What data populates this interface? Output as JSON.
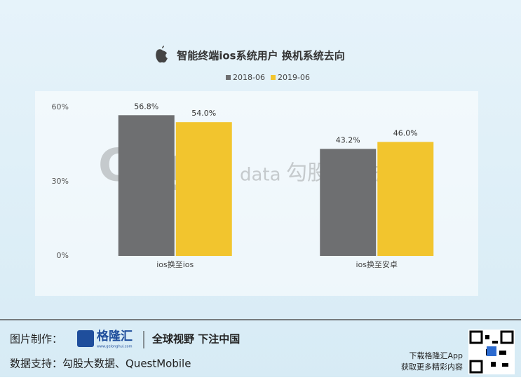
{
  "chart_data": {
    "type": "bar",
    "title": "智能终端ios系统用户 换机系统去向",
    "categories": [
      "ios换至ios",
      "ios换至安卓"
    ],
    "series": [
      {
        "name": "2018-06",
        "color": "#6e6f71",
        "values": [
          56.8,
          43.2
        ],
        "value_labels": [
          "56.8%",
          "43.2%"
        ]
      },
      {
        "name": "2019-06",
        "color": "#f2c52e",
        "values": [
          54.0,
          46.0
        ],
        "value_labels": [
          "54.0%",
          "46.0%"
        ]
      }
    ],
    "ylim": [
      0,
      60
    ],
    "yticks": [
      {
        "value": 0,
        "label": "0%"
      },
      {
        "value": 30,
        "label": "30%"
      },
      {
        "value": 60,
        "label": "60%"
      }
    ],
    "grid": false,
    "legend": "top"
  },
  "watermark": {
    "logo": "Gogu",
    "suffix": "data",
    "name": "勾股大数据"
  },
  "footer": {
    "made_by_label": "图片制作：",
    "brand": "格隆汇",
    "brand_site": "www.gelonghui.com",
    "slogan": "全球视野 下注中国",
    "source": "数据支持：勾股大数据、QuestMobile",
    "app_line1": "下载格隆汇App",
    "app_line2": "获取更多精彩内容"
  }
}
